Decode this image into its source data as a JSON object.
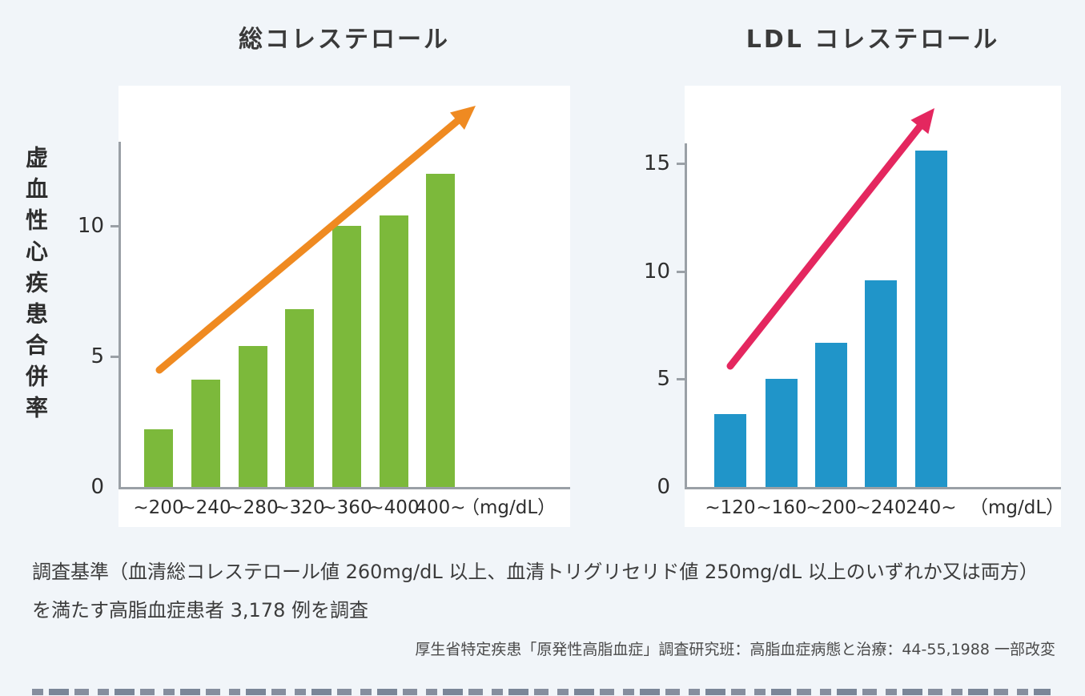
{
  "colors": {
    "background": "#f1f5f9",
    "panel": "#ffffff",
    "axis": "#9aa0a6",
    "text": "#2e2e2e",
    "green_bar": "#7cb93b",
    "blue_bar": "#2095c9",
    "orange_arrow": "#ef8a21",
    "pink_arrow": "#e4275f"
  },
  "chart_data": [
    {
      "type": "bar",
      "title": "総コレステロール",
      "ylabel": "虚血性心疾患合併率",
      "xlabel": "",
      "unit": "（mg/dL）",
      "categories": [
        "~200",
        "~240",
        "~280",
        "~320",
        "~360",
        "~400",
        "400~"
      ],
      "values": [
        2.2,
        4.1,
        5.4,
        6.8,
        10.0,
        10.4,
        12.0
      ],
      "y_ticks": [
        0,
        5,
        10
      ],
      "ylim": [
        0,
        13
      ],
      "grid": false,
      "legend_position": "none",
      "bar_color": "#7cb93b",
      "arrow_color": "#ef8a21",
      "annotation": "rising-trend-arrow"
    },
    {
      "type": "bar",
      "title": "LDL コレステロール",
      "ylabel": "",
      "xlabel": "",
      "unit": "（mg/dL）",
      "categories": [
        "~120",
        "~160",
        "~200",
        "~240",
        "240~"
      ],
      "values": [
        3.4,
        5.0,
        6.7,
        9.6,
        15.6
      ],
      "y_ticks": [
        0,
        5,
        10,
        15
      ],
      "ylim": [
        0,
        16
      ],
      "grid": false,
      "legend_position": "none",
      "bar_color": "#2095c9",
      "arrow_color": "#e4275f",
      "annotation": "rising-trend-arrow"
    }
  ],
  "footnote": {
    "line1": "調査基準（血清総コレステロール値 260mg/dL 以上、血清トリグリセリド値 250mg/dL 以上のいずれか又は両方）",
    "line2": "を満たす高脂血症患者 3,178 例を調査"
  },
  "source": "厚生省特定疾患「原発性高脂血症」調査研究班：高脂血症病態と治療：44-55,1988 一部改変"
}
